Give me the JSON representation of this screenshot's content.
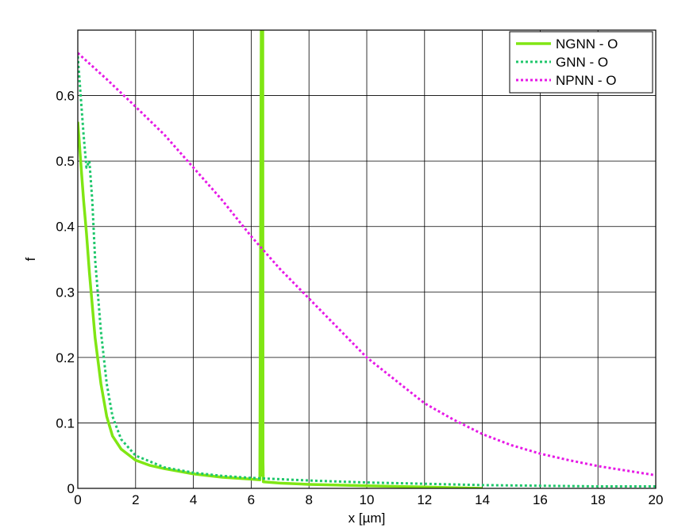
{
  "chart_data": {
    "type": "line",
    "title": "",
    "xlabel": "x [µm]",
    "ylabel": "f",
    "xlim": [
      0,
      20
    ],
    "ylim": [
      0,
      0.7
    ],
    "xticks": [
      "0",
      "2",
      "4",
      "6",
      "8",
      "10",
      "12",
      "14",
      "16",
      "18",
      "20"
    ],
    "yticks": [
      "0",
      "0.1",
      "0.2",
      "0.3",
      "0.4",
      "0.5",
      "0.6"
    ],
    "grid": true,
    "legend_position": "top-right",
    "series": [
      {
        "name": "NGNN - O",
        "color": "#80e614",
        "style": "solid",
        "x": [
          0,
          0.1,
          0.2,
          0.3,
          0.4,
          0.5,
          0.6,
          0.8,
          1.0,
          1.2,
          1.5,
          2.0,
          2.5,
          3.0,
          4.0,
          5.0,
          6.0,
          6.3,
          6.35,
          6.36,
          6.37,
          6.38,
          6.4,
          6.41,
          6.42,
          7.0,
          8.0,
          10.0,
          12.0,
          14.0
        ],
        "y": [
          0.56,
          0.5,
          0.44,
          0.39,
          0.33,
          0.28,
          0.23,
          0.16,
          0.11,
          0.08,
          0.06,
          0.043,
          0.035,
          0.03,
          0.022,
          0.017,
          0.014,
          0.013,
          0.7,
          0.7,
          0.02,
          0.7,
          0.7,
          0.04,
          0.01,
          0.008,
          0.006,
          0.004,
          0.002,
          0.0
        ]
      },
      {
        "name": "GNN - O",
        "color": "#1fc76b",
        "style": "dotted",
        "x": [
          0,
          0.1,
          0.2,
          0.3,
          0.4,
          0.5,
          0.6,
          0.8,
          1.0,
          1.2,
          1.5,
          2.0,
          3.0,
          4.0,
          5.0,
          6.0,
          8.0,
          10.0,
          12.0,
          14.0,
          16.0,
          18.0,
          20.0
        ],
        "y": [
          0.66,
          0.6,
          0.54,
          0.49,
          0.5,
          0.44,
          0.35,
          0.24,
          0.16,
          0.11,
          0.075,
          0.05,
          0.032,
          0.024,
          0.019,
          0.016,
          0.012,
          0.009,
          0.007,
          0.005,
          0.004,
          0.003,
          0.003
        ]
      },
      {
        "name": "NPNN - O",
        "color": "#e619e6",
        "style": "dotted",
        "x": [
          0,
          1,
          2,
          3,
          4,
          5,
          6,
          7,
          8,
          9,
          10,
          11,
          12,
          13,
          14,
          15,
          16,
          17,
          18,
          19,
          20
        ],
        "y": [
          0.665,
          0.625,
          0.583,
          0.54,
          0.49,
          0.44,
          0.385,
          0.335,
          0.29,
          0.245,
          0.2,
          0.165,
          0.13,
          0.105,
          0.083,
          0.066,
          0.053,
          0.043,
          0.034,
          0.027,
          0.02
        ]
      }
    ]
  }
}
